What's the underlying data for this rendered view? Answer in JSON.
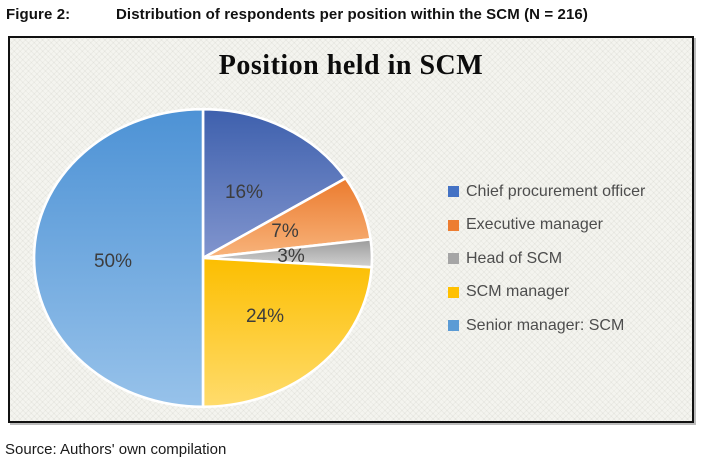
{
  "figure": {
    "label": "Figure 2:",
    "caption": "Distribution of respondents per position within the SCM (N = 216)"
  },
  "chart_data": {
    "type": "pie",
    "title": "Position held in SCM",
    "categories": [
      "Chief procurement officer",
      "Executive manager",
      "Head of SCM",
      "SCM manager",
      "Senior manager: SCM"
    ],
    "values": [
      16,
      7,
      3,
      24,
      50
    ],
    "unit": "%",
    "sample_size_note": "N = 216",
    "labels": [
      "16%",
      "7%",
      "3%",
      "24%",
      "50%"
    ],
    "colors": [
      "#4472c4",
      "#ed7d31",
      "#a5a5a5",
      "#ffc000",
      "#5b9bd5"
    ],
    "slice_gradients": [
      [
        "#3e60ad",
        "#8195ce"
      ],
      [
        "#eb7b2e",
        "#f8b47c"
      ],
      [
        "#9b9b9b",
        "#d2d2d2"
      ],
      [
        "#fcbe00",
        "#ffdc6d"
      ],
      [
        "#4d92d5",
        "#97c2ea"
      ]
    ],
    "legend_position": "right",
    "start_angle_deg": 0,
    "direction": "clockwise"
  },
  "source": "Source: Authors' own compilation"
}
